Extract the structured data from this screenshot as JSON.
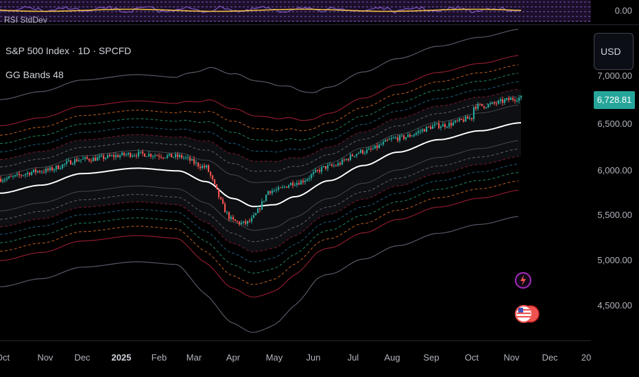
{
  "indicator_top": {
    "label": "RSI StdDev",
    "value": "0.00"
  },
  "header": {
    "symbol_line": "S&P 500 Index · 1D · SPCFD",
    "indicator_line": "GG Bands 48"
  },
  "currency_button": "USD",
  "last_price": "6,728.81",
  "price_axis": [
    "7,000.00",
    "6,500.00",
    "6,000.00",
    "5,500.00",
    "5,000.00",
    "4,500.00"
  ],
  "time_axis": [
    "Oct",
    "Nov",
    "Dec",
    "2025",
    "Feb",
    "Mar",
    "Apr",
    "May",
    "Jun",
    "Jul",
    "Aug",
    "Sep",
    "Oct",
    "Nov",
    "Dec",
    "20"
  ],
  "colors": {
    "background": "#000000",
    "up": "#26a69a",
    "down": "#ef5350",
    "basis": "#ffffff",
    "rsi_line": "#f0c040",
    "rsi_fill": "#7e57c2",
    "lightning": "#9c27b0"
  },
  "icons": [
    "lightning-event-icon",
    "us-flag-event-icon"
  ]
}
